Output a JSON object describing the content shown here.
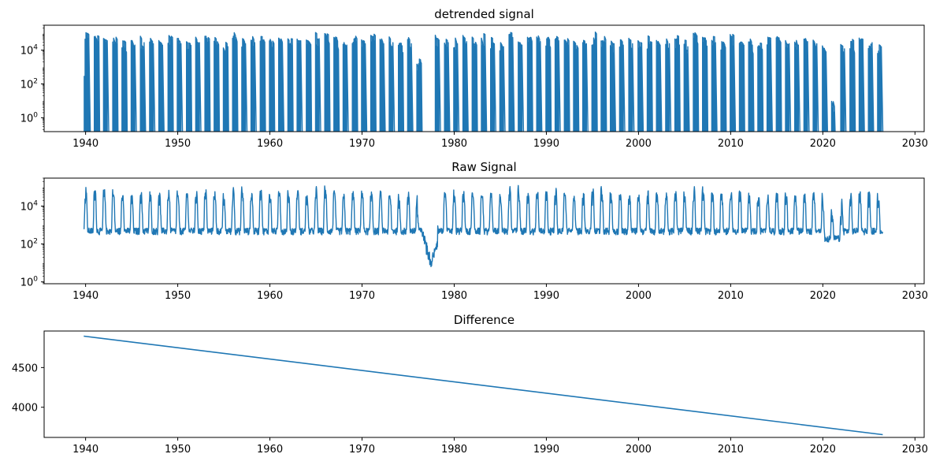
{
  "chart_data": [
    {
      "type": "line",
      "title": "detrended signal",
      "xlabel": "",
      "ylabel": "",
      "yscale": "log",
      "xlim": [
        1935.5,
        2031.0
      ],
      "ylim": [
        0.15,
        300000
      ],
      "x_ticks": [
        1940,
        1950,
        1960,
        1970,
        1980,
        1990,
        2000,
        2010,
        2020,
        2030
      ],
      "x_tick_labels": [
        "1940",
        "1950",
        "1960",
        "1970",
        "1980",
        "1990",
        "2000",
        "2010",
        "2020",
        "2030"
      ],
      "y_ticks": [
        1,
        100,
        10000
      ],
      "y_tick_labels": [
        {
          "base": "10",
          "exp": "0"
        },
        {
          "base": "10",
          "exp": "2"
        },
        {
          "base": "10",
          "exp": "4"
        }
      ],
      "grid": false,
      "series": [
        {
          "color": "#1f77b4",
          "x_range": [
            1939.8,
            2026.5
          ],
          "description_peaks": {
            "x": [
              1940.0,
              1941.0,
              1942.0,
              1943.0,
              1944.0,
              1945.0,
              1946.0,
              1947.0,
              1948.0,
              1949.0,
              1950.0,
              1951.0,
              1952.0,
              1953.0,
              1954.0,
              1955.0,
              1956.0,
              1957.0,
              1958.0,
              1959.0,
              1960.0,
              1961.0,
              1962.0,
              1963.0,
              1964.0,
              1965.0,
              1966.0,
              1967.0,
              1968.0,
              1969.0,
              1970.0,
              1971.0,
              1972.0,
              1973.0,
              1974.0,
              1975.0,
              1976.0,
              1978.0,
              1979.0,
              1980.0,
              1981.0,
              1982.0,
              1983.0,
              1984.0,
              1985.0,
              1986.0,
              1987.0,
              1988.0,
              1989.0,
              1990.0,
              1991.0,
              1992.0,
              1993.0,
              1994.0,
              1995.0,
              1996.0,
              1997.0,
              1998.0,
              1999.0,
              2000.0,
              2001.0,
              2002.0,
              2003.0,
              2004.0,
              2005.0,
              2006.0,
              2007.0,
              2008.0,
              2009.0,
              2010.0,
              2011.0,
              2012.0,
              2013.0,
              2014.0,
              2015.0,
              2016.0,
              2017.0,
              2018.0,
              2019.0,
              2020.0,
              2021.0,
              2022.0,
              2023.0,
              2024.0,
              2025.0,
              2026.0
            ],
            "peak": [
              110000,
              80000,
              90000,
              60000,
              40000,
              50000,
              70000,
              60000,
              50000,
              80000,
              60000,
              50000,
              70000,
              80000,
              60000,
              30000,
              120000,
              60000,
              70000,
              100000,
              60000,
              70000,
              50000,
              90000,
              40000,
              120000,
              100000,
              70000,
              50000,
              80000,
              60000,
              90000,
              60000,
              70000,
              30000,
              60000,
              3000,
              100000,
              70000,
              60000,
              80000,
              70000,
              100000,
              60000,
              40000,
              140000,
              50000,
              60000,
              80000,
              60000,
              90000,
              50000,
              40000,
              60000,
              120000,
              70000,
              60000,
              50000,
              60000,
              40000,
              70000,
              50000,
              60000,
              80000,
              40000,
              110000,
              60000,
              70000,
              50000,
              90000,
              60000,
              50000,
              40000,
              60000,
              70000,
              60000,
              50000,
              80000,
              60000,
              20000,
              10,
              30000,
              50000,
              60000,
              70000,
              40000
            ]
          }
        }
      ]
    },
    {
      "type": "line",
      "title": "Raw Signal",
      "xlabel": "",
      "ylabel": "",
      "yscale": "log",
      "xlim": [
        1935.5,
        2031.0
      ],
      "ylim": [
        0.8,
        300000
      ],
      "x_ticks": [
        1940,
        1950,
        1960,
        1970,
        1980,
        1990,
        2000,
        2010,
        2020,
        2030
      ],
      "x_tick_labels": [
        "1940",
        "1950",
        "1960",
        "1970",
        "1980",
        "1990",
        "2000",
        "2010",
        "2020",
        "2030"
      ],
      "y_ticks": [
        1,
        100,
        10000
      ],
      "y_tick_labels": [
        {
          "base": "10",
          "exp": "0"
        },
        {
          "base": "10",
          "exp": "2"
        },
        {
          "base": "10",
          "exp": "4"
        }
      ],
      "grid": false,
      "series": [
        {
          "color": "#1f77b4",
          "x_range": [
            1939.8,
            2026.5
          ],
          "baseline_range": [
            200,
            800
          ],
          "minimum": {
            "x": 1977.5,
            "y": 1.5
          }
        }
      ]
    },
    {
      "type": "line",
      "title": "Difference",
      "xlabel": "",
      "ylabel": "",
      "yscale": "linear",
      "xlim": [
        1935.5,
        2031.0
      ],
      "ylim": [
        3620,
        4960
      ],
      "x_ticks": [
        1940,
        1950,
        1960,
        1970,
        1980,
        1990,
        2000,
        2010,
        2020,
        2030
      ],
      "x_tick_labels": [
        "1940",
        "1950",
        "1960",
        "1970",
        "1980",
        "1990",
        "2000",
        "2010",
        "2020",
        "2030"
      ],
      "y_ticks": [
        4000,
        4500
      ],
      "y_tick_labels": [
        "4000",
        "4500"
      ],
      "grid": false,
      "series": [
        {
          "color": "#1f77b4",
          "x": [
            1939.8,
            2026.5
          ],
          "y": [
            4895,
            3655
          ]
        }
      ]
    }
  ]
}
